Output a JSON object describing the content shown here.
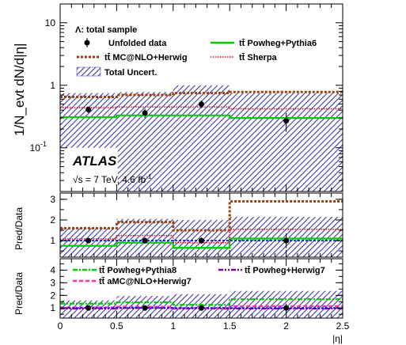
{
  "chart_data": {
    "type": "line",
    "x_bins": [
      0,
      0.5,
      1,
      1.5,
      2,
      2.5
    ],
    "x_centers": [
      0.25,
      0.75,
      1.25,
      2.0
    ],
    "x_ticks": [
      "0",
      "0.5",
      "1",
      "1.5",
      "2",
      "2.5"
    ],
    "xlabel": "|η|",
    "xlim": [
      0,
      2.5
    ],
    "colors": {
      "data": "#000000",
      "powheg_pythia6": "#00cc00",
      "mcatnlo_herwig": "#a0400a",
      "sherpa": "#ff0000",
      "uncert": "#3a3aa8",
      "powheg_pythia8": "#00cc00",
      "powheg_herwig7": "#7a00a0",
      "amcatnlo_herwig7": "#ff2ab0",
      "unity_blue": "#0000ff"
    },
    "main": {
      "ylabel": "1/N_evt dN/d|η|",
      "yscale": "log",
      "ylim": [
        0.02,
        20
      ],
      "yticks": [
        "10^{-1}",
        "1",
        "10"
      ],
      "selection_label": "Λ: total sample",
      "atlas_label": "ATLAS",
      "energy_label": "√s = 7 TeV, 4.6 fb",
      "energy_label_sup": "-1",
      "data": {
        "name": "Unfolded data",
        "values": [
          0.41,
          0.36,
          0.5,
          0.27
        ],
        "yerr_low": [
          0.05,
          0.06,
          0.07,
          0.09
        ],
        "yerr_high": [
          0.05,
          0.06,
          0.07,
          0.09
        ]
      },
      "series": [
        {
          "name": "tt̄ Powheg+Pythia6",
          "key": "powheg_pythia6",
          "values": [
            0.31,
            0.33,
            0.33,
            0.3
          ]
        },
        {
          "name": "tt̄ MC@NLO+Herwig",
          "key": "mcatnlo_herwig",
          "values": [
            0.65,
            0.7,
            0.75,
            0.78
          ]
        },
        {
          "name": "tt̄ Sherpa",
          "key": "sherpa",
          "values": [
            0.44,
            0.45,
            0.45,
            0.42
          ]
        }
      ],
      "uncertainty": {
        "name": "Total Uncert.",
        "low": [
          0.048,
          0.02,
          0.02,
          0.02
        ],
        "high": [
          0.75,
          0.78,
          1.0,
          0.75
        ]
      }
    },
    "ratio1": {
      "ylabel": "Pred/Data",
      "ylim": [
        0.2,
        3.3
      ],
      "yticks": [
        "1",
        "2",
        "3"
      ],
      "series": [
        {
          "key": "powheg_pythia6",
          "values": [
            0.75,
            0.9,
            0.65,
            1.1
          ]
        },
        {
          "key": "mcatnlo_herwig",
          "values": [
            1.6,
            1.9,
            1.5,
            2.9
          ]
        },
        {
          "key": "sherpa",
          "values": [
            1.08,
            1.25,
            0.9,
            1.55
          ]
        },
        {
          "key": "unity_blue",
          "values": [
            1.0,
            1.0,
            1.0,
            1.0
          ]
        }
      ],
      "uncertainty": {
        "low": [
          0.2,
          0.2,
          0.2,
          0.2
        ],
        "high": [
          1.6,
          2.05,
          2.0,
          2.15
        ]
      },
      "data_points": {
        "values": [
          1,
          1,
          1,
          1
        ],
        "yerr": [
          0.12,
          0.15,
          0.15,
          0.35
        ]
      }
    },
    "ratio2": {
      "ylabel": "Pred/Data",
      "ylim": [
        0.2,
        4.9
      ],
      "yticks": [
        "1",
        "2",
        "3",
        "4"
      ],
      "series": [
        {
          "name": "tt̄ Powheg+Pythia8",
          "key": "powheg_pythia8",
          "values": [
            1.35,
            1.45,
            1.25,
            1.7
          ]
        },
        {
          "name": "tt̄ Powheg+Herwig7",
          "key": "powheg_herwig7",
          "values": [
            0.95,
            1.0,
            0.95,
            0.95
          ]
        },
        {
          "name": "tt̄ aMC@NLO+Herwig7",
          "key": "amcatnlo_herwig7",
          "values": [
            1.05,
            1.1,
            1.0,
            1.15
          ]
        },
        {
          "key": "unity_blue",
          "values": [
            1.0,
            1.0,
            1.0,
            1.0
          ]
        }
      ],
      "uncertainty": {
        "low": [
          0.2,
          0.2,
          0.2,
          0.2
        ],
        "high": [
          1.6,
          1.95,
          2.1,
          2.35
        ]
      },
      "data_points": {
        "values": [
          1,
          1,
          1,
          1
        ],
        "yerr": [
          0.15,
          0.15,
          0.2,
          0.35
        ]
      }
    }
  }
}
